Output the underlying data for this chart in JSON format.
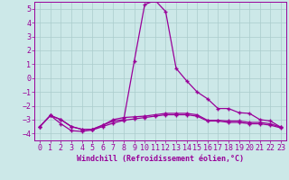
{
  "xlabel": "Windchill (Refroidissement éolien,°C)",
  "bg_color": "#cce8e8",
  "line_color": "#990099",
  "grid_color": "#aacccc",
  "xlim": [
    -0.5,
    23.5
  ],
  "ylim": [
    -4.5,
    5.5
  ],
  "xticks": [
    0,
    1,
    2,
    3,
    4,
    5,
    6,
    7,
    8,
    9,
    10,
    11,
    12,
    13,
    14,
    15,
    16,
    17,
    18,
    19,
    20,
    21,
    22,
    23
  ],
  "yticks": [
    -4,
    -3,
    -2,
    -1,
    0,
    1,
    2,
    3,
    4,
    5
  ],
  "series1_x": [
    0,
    1,
    2,
    3,
    4,
    5,
    6,
    7,
    8,
    9,
    10,
    11,
    12,
    13,
    14,
    15,
    16,
    17,
    18,
    19,
    20,
    21,
    22,
    23
  ],
  "series1_y": [
    -3.5,
    -2.7,
    -3.0,
    -3.5,
    -3.7,
    -3.7,
    -3.4,
    -3.0,
    -2.85,
    -2.8,
    -2.75,
    -2.65,
    -2.55,
    -2.55,
    -2.55,
    -2.65,
    -3.05,
    -3.05,
    -3.1,
    -3.1,
    -3.2,
    -3.2,
    -3.3,
    -3.55
  ],
  "series2_x": [
    0,
    1,
    2,
    3,
    4,
    5,
    6,
    7,
    8,
    9,
    10,
    11,
    12,
    13,
    14,
    15,
    16,
    17,
    18,
    19,
    20,
    21,
    22,
    23
  ],
  "series2_y": [
    -3.5,
    -2.7,
    -3.3,
    -3.8,
    -3.85,
    -3.75,
    -3.5,
    -3.25,
    -3.05,
    -2.95,
    -2.85,
    -2.75,
    -2.65,
    -2.65,
    -2.65,
    -2.75,
    -3.1,
    -3.1,
    -3.2,
    -3.2,
    -3.3,
    -3.3,
    -3.4,
    -3.6
  ],
  "series3_x": [
    0,
    1,
    2,
    3,
    4,
    5,
    6,
    7,
    8,
    9,
    10,
    11,
    12,
    13,
    14,
    15,
    16,
    17,
    18,
    19,
    20,
    21,
    22,
    23
  ],
  "series3_y": [
    -3.5,
    -2.7,
    -3.0,
    -3.5,
    -3.7,
    -3.7,
    -3.4,
    -3.1,
    -3.0,
    1.2,
    5.3,
    5.6,
    4.8,
    0.7,
    -0.2,
    -1.0,
    -1.5,
    -2.2,
    -2.2,
    -2.5,
    -2.55,
    -3.0,
    -3.1,
    -3.55
  ],
  "xlabel_fontsize": 6,
  "tick_fontsize": 6,
  "linewidth": 0.9,
  "marker": "+"
}
